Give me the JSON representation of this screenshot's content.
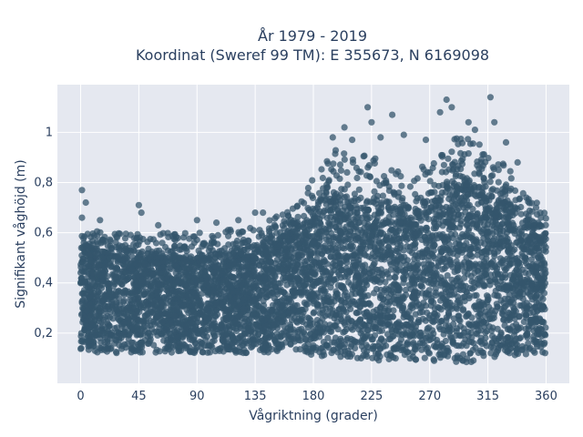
{
  "chart_data": {
    "type": "scatter",
    "title_line1": "År 1979 - 2019",
    "title_line2": "Koordinat (Sweref 99 TM): E 355673, N 6169098",
    "xlabel": "Vågriktning (grader)",
    "ylabel": "Signifikant våghöjd (m)",
    "xlim": [
      -18,
      378
    ],
    "ylim": [
      0,
      1.19
    ],
    "xticks": [
      0,
      45,
      90,
      135,
      180,
      225,
      270,
      315,
      360
    ],
    "xtick_labels": [
      "0",
      "45",
      "90",
      "135",
      "180",
      "225",
      "270",
      "315",
      "360"
    ],
    "yticks": [
      0.2,
      0.4,
      0.6,
      0.8,
      1.0
    ],
    "ytick_labels": [
      "0,2",
      "0,4",
      "0,6",
      "0,8",
      "1"
    ],
    "marker_color": "#34566c",
    "background_color": "#e5e8f0",
    "grid": true,
    "envelope": {
      "direction_deg": [
        0,
        20,
        45,
        90,
        135,
        170,
        180,
        200,
        225,
        250,
        270,
        290,
        315,
        340,
        360
      ],
      "lower_m": [
        0.1,
        0.1,
        0.1,
        0.1,
        0.1,
        0.1,
        0.08,
        0.08,
        0.07,
        0.07,
        0.07,
        0.06,
        0.07,
        0.09,
        0.1
      ],
      "dense_upper_m": [
        0.55,
        0.52,
        0.5,
        0.5,
        0.52,
        0.62,
        0.68,
        0.75,
        0.72,
        0.68,
        0.7,
        0.8,
        0.78,
        0.68,
        0.6
      ],
      "sparse_upper_m": [
        0.62,
        0.6,
        0.6,
        0.6,
        0.62,
        0.72,
        0.82,
        0.95,
        0.92,
        0.85,
        0.88,
        1.0,
        0.95,
        0.8,
        0.68
      ]
    },
    "outliers": [
      {
        "x": 1,
        "y": 0.77
      },
      {
        "x": 4,
        "y": 0.72
      },
      {
        "x": 1,
        "y": 0.66
      },
      {
        "x": 15,
        "y": 0.65
      },
      {
        "x": 45,
        "y": 0.71
      },
      {
        "x": 47,
        "y": 0.68
      },
      {
        "x": 60,
        "y": 0.63
      },
      {
        "x": 90,
        "y": 0.65
      },
      {
        "x": 105,
        "y": 0.64
      },
      {
        "x": 122,
        "y": 0.65
      },
      {
        "x": 135,
        "y": 0.68
      },
      {
        "x": 141,
        "y": 0.68
      },
      {
        "x": 164,
        "y": 0.64
      },
      {
        "x": 195,
        "y": 0.98
      },
      {
        "x": 204,
        "y": 1.02
      },
      {
        "x": 210,
        "y": 0.97
      },
      {
        "x": 222,
        "y": 1.1
      },
      {
        "x": 225,
        "y": 1.04
      },
      {
        "x": 232,
        "y": 0.98
      },
      {
        "x": 241,
        "y": 1.07
      },
      {
        "x": 250,
        "y": 0.99
      },
      {
        "x": 267,
        "y": 0.97
      },
      {
        "x": 278,
        "y": 1.08
      },
      {
        "x": 283,
        "y": 1.13
      },
      {
        "x": 287,
        "y": 1.1
      },
      {
        "x": 300,
        "y": 1.04
      },
      {
        "x": 305,
        "y": 1.01
      },
      {
        "x": 317,
        "y": 1.14
      },
      {
        "x": 320,
        "y": 1.04
      },
      {
        "x": 329,
        "y": 0.96
      },
      {
        "x": 338,
        "y": 0.88
      },
      {
        "x": 356,
        "y": 0.66
      }
    ]
  }
}
